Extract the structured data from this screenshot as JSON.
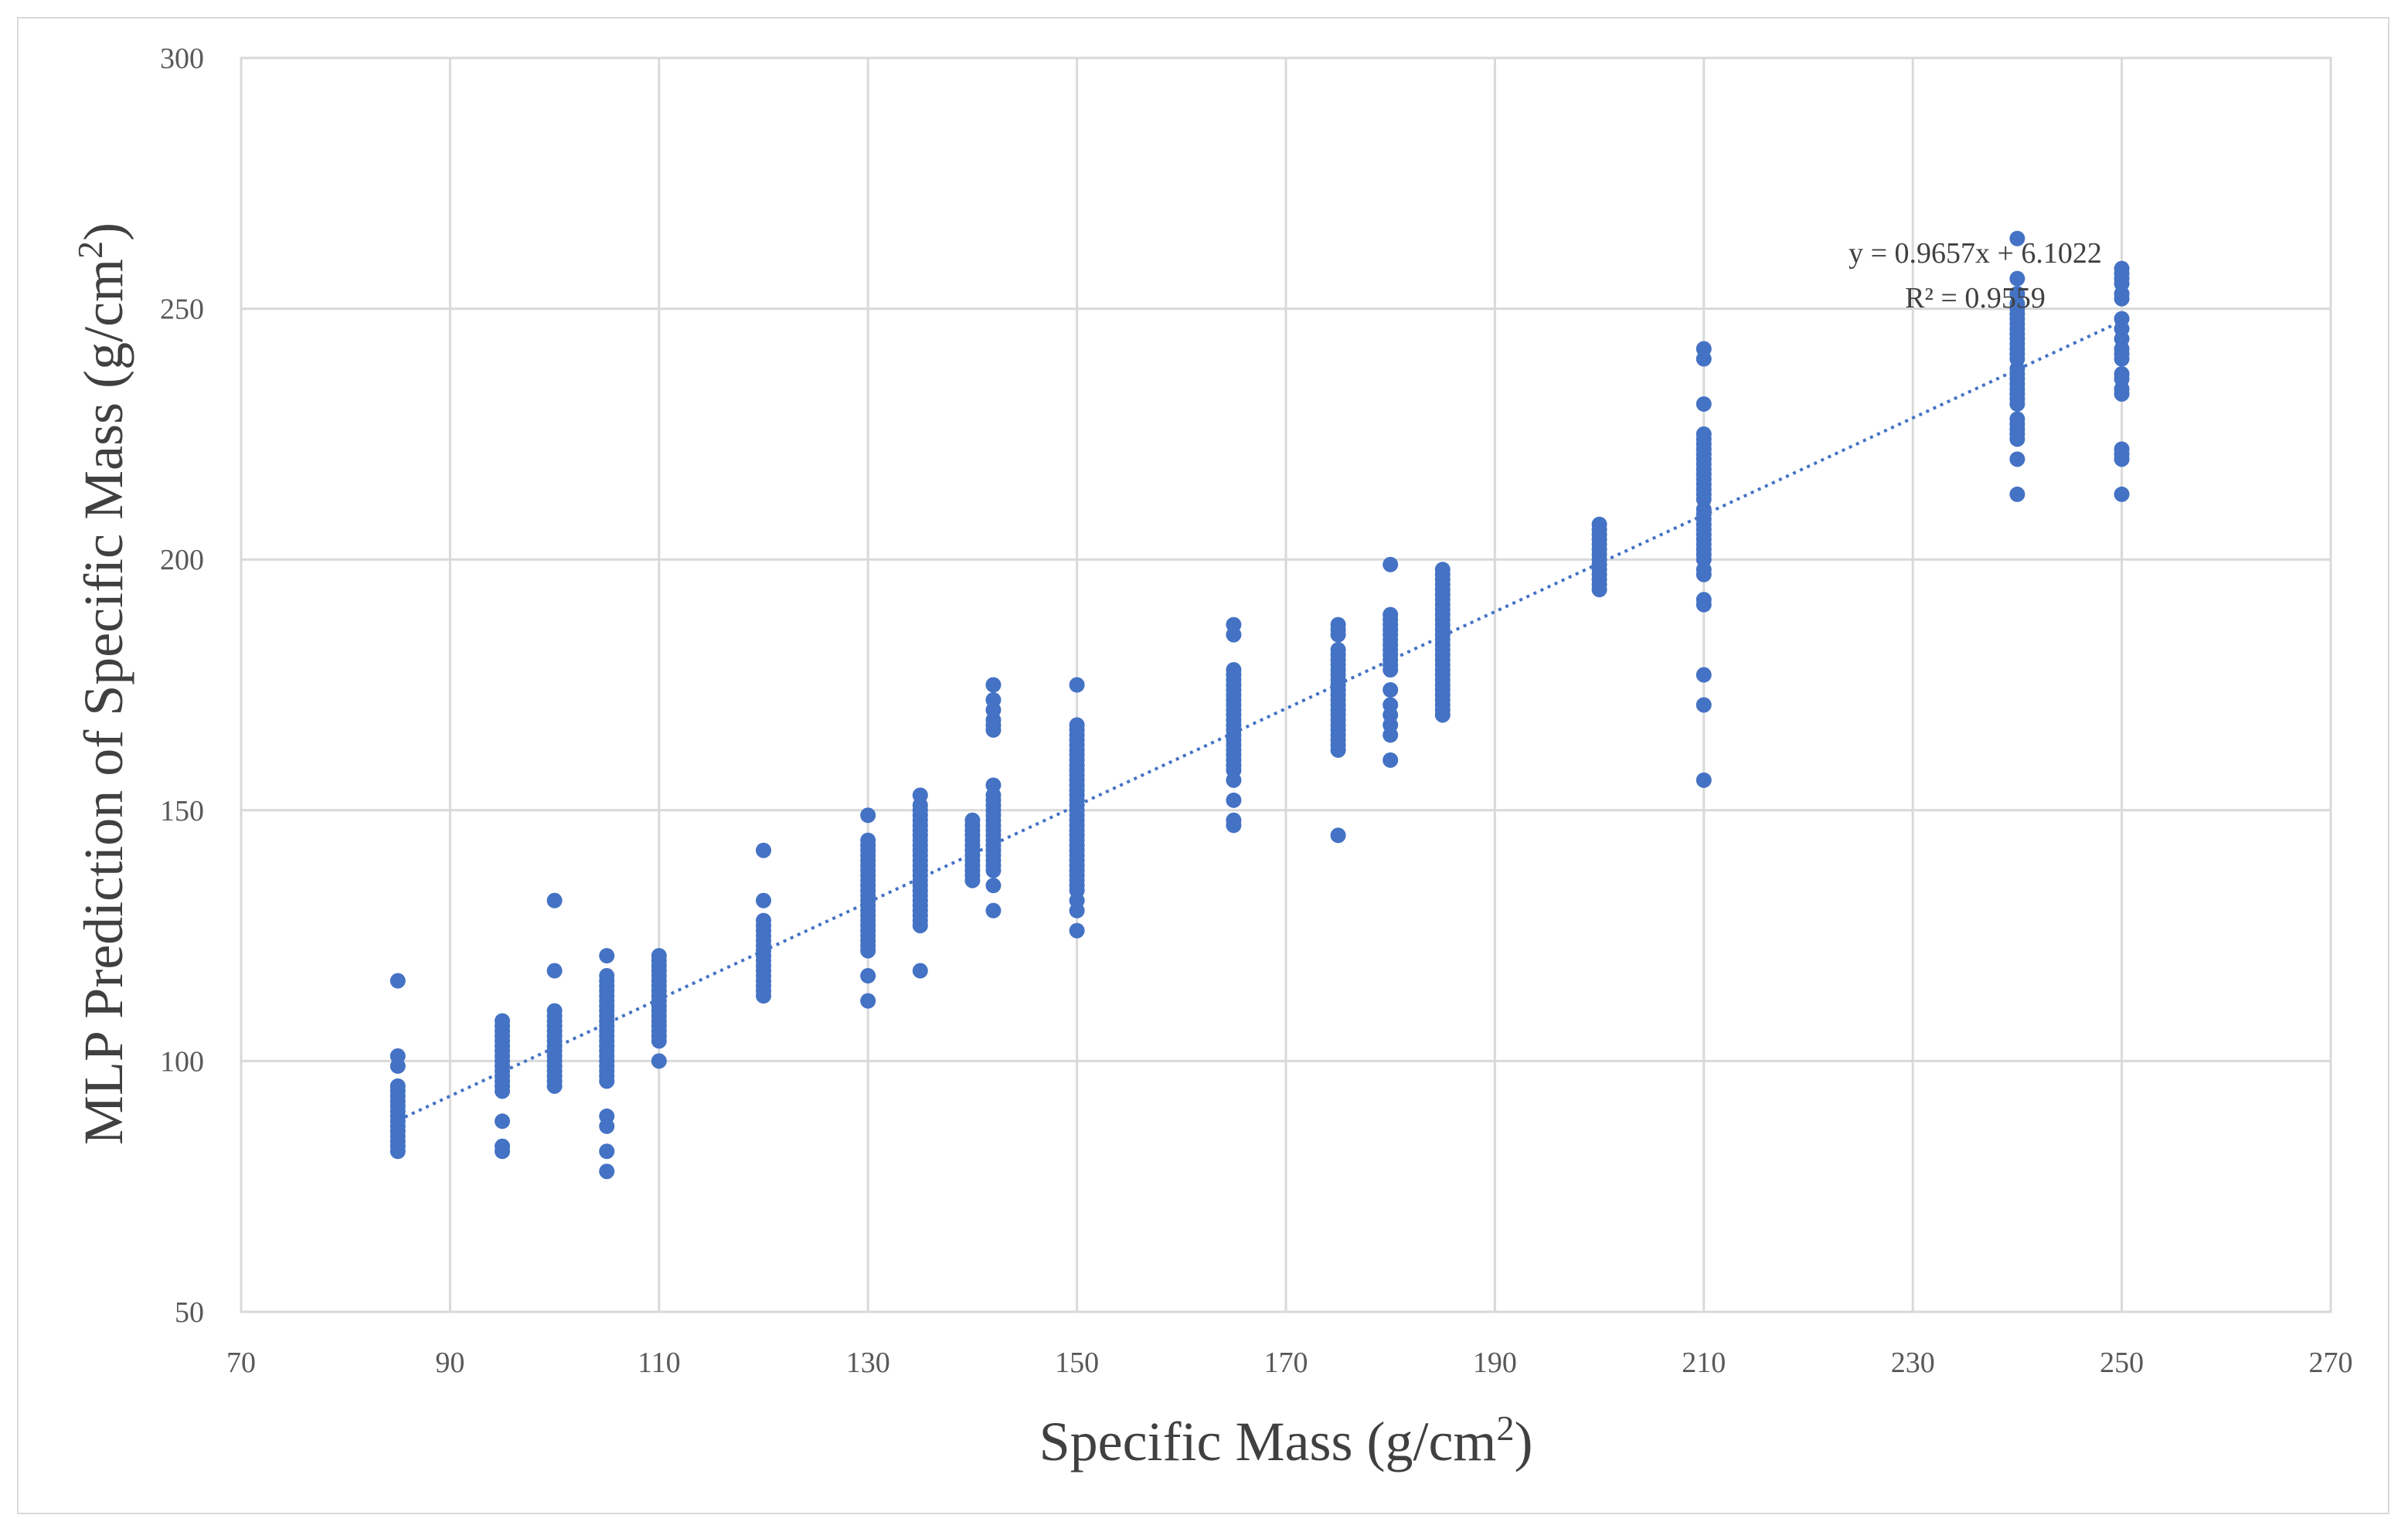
{
  "chart_data": {
    "type": "scatter",
    "title": "",
    "xlabel": "Specific Mass  (g/cm",
    "xlabel_sup": "2",
    "xlabel_end": ")",
    "ylabel": "MLP Prediction of Specific Mass  (g/cm",
    "ylabel_sup": "2",
    "ylabel_end": ")",
    "xlim": [
      70,
      270
    ],
    "ylim": [
      50,
      300
    ],
    "xticks": [
      70,
      90,
      110,
      130,
      150,
      170,
      190,
      210,
      230,
      250,
      270
    ],
    "yticks": [
      50,
      100,
      150,
      200,
      250,
      300
    ],
    "grid": true,
    "marker_color": "#4472c4",
    "trendline": {
      "slope": 0.9657,
      "intercept": 6.1022,
      "x_range": [
        85,
        250
      ],
      "equation": "y = 0.9657x + 6.1022",
      "r2": "R² = 0.9559"
    },
    "series": [
      {
        "x": 85,
        "y": [
          82,
          83,
          84,
          85,
          86,
          87,
          88,
          89,
          90,
          91,
          92,
          93,
          94,
          95,
          99,
          101,
          116
        ]
      },
      {
        "x": 95,
        "y": [
          82,
          83,
          88,
          94,
          95,
          96,
          97,
          98,
          99,
          100,
          101,
          102,
          103,
          104,
          105,
          106,
          107,
          108
        ]
      },
      {
        "x": 100,
        "y": [
          95,
          96,
          97,
          98,
          99,
          100,
          101,
          102,
          103,
          104,
          105,
          106,
          107,
          108,
          109,
          110,
          118,
          132
        ]
      },
      {
        "x": 105,
        "y": [
          78,
          82,
          87,
          89,
          96,
          97,
          98,
          99,
          100,
          101,
          102,
          103,
          104,
          105,
          106,
          107,
          108,
          109,
          110,
          111,
          112,
          113,
          114,
          115,
          116,
          117,
          121
        ]
      },
      {
        "x": 110,
        "y": [
          100,
          104,
          105,
          106,
          107,
          108,
          109,
          110,
          111,
          112,
          113,
          114,
          115,
          116,
          117,
          118,
          119,
          120,
          121
        ]
      },
      {
        "x": 120,
        "y": [
          113,
          114,
          115,
          116,
          117,
          118,
          119,
          120,
          121,
          122,
          123,
          124,
          125,
          126,
          127,
          128,
          132,
          142
        ]
      },
      {
        "x": 130,
        "y": [
          112,
          117,
          122,
          123,
          124,
          125,
          126,
          127,
          128,
          129,
          130,
          131,
          132,
          133,
          134,
          135,
          136,
          137,
          138,
          139,
          140,
          141,
          142,
          143,
          144,
          149
        ]
      },
      {
        "x": 135,
        "y": [
          118,
          127,
          128,
          129,
          130,
          131,
          132,
          133,
          134,
          135,
          136,
          137,
          138,
          139,
          140,
          141,
          142,
          143,
          144,
          145,
          146,
          147,
          148,
          149,
          150,
          151,
          153
        ]
      },
      {
        "x": 140,
        "y": [
          136,
          137,
          138,
          139,
          140,
          141,
          142,
          143,
          144,
          145,
          146,
          147,
          148
        ]
      },
      {
        "x": 142,
        "y": [
          130,
          135,
          138,
          139,
          140,
          141,
          142,
          143,
          144,
          145,
          146,
          147,
          148,
          149,
          150,
          151,
          152,
          153,
          155,
          166,
          167,
          168,
          170,
          172,
          175
        ]
      },
      {
        "x": 150,
        "y": [
          126,
          130,
          132,
          134,
          135,
          136,
          137,
          138,
          139,
          140,
          141,
          142,
          143,
          144,
          145,
          146,
          147,
          148,
          149,
          150,
          151,
          152,
          153,
          154,
          155,
          156,
          157,
          158,
          159,
          160,
          161,
          162,
          163,
          164,
          165,
          166,
          167,
          175
        ]
      },
      {
        "x": 165,
        "y": [
          147,
          148,
          152,
          156,
          158,
          159,
          160,
          161,
          162,
          163,
          164,
          165,
          166,
          167,
          168,
          169,
          170,
          171,
          172,
          173,
          174,
          175,
          176,
          177,
          178,
          185,
          187
        ]
      },
      {
        "x": 175,
        "y": [
          145,
          162,
          163,
          164,
          165,
          166,
          167,
          168,
          169,
          170,
          171,
          172,
          173,
          174,
          175,
          176,
          177,
          178,
          179,
          180,
          181,
          182,
          185,
          186,
          187
        ]
      },
      {
        "x": 180,
        "y": [
          160,
          165,
          167,
          169,
          171,
          174,
          178,
          179,
          180,
          181,
          182,
          183,
          184,
          185,
          186,
          187,
          188,
          189,
          199
        ]
      },
      {
        "x": 185,
        "y": [
          169,
          170,
          171,
          172,
          173,
          174,
          175,
          176,
          177,
          178,
          179,
          180,
          181,
          182,
          183,
          184,
          185,
          186,
          187,
          188,
          189,
          190,
          191,
          192,
          193,
          194,
          195,
          196,
          197,
          198
        ]
      },
      {
        "x": 200,
        "y": [
          194,
          195,
          196,
          197,
          198,
          199,
          200,
          201,
          202,
          203,
          204,
          205,
          206,
          207
        ]
      },
      {
        "x": 210,
        "y": [
          156,
          171,
          177,
          191,
          192,
          197,
          198,
          200,
          201,
          202,
          203,
          204,
          205,
          206,
          207,
          208,
          209,
          210,
          212,
          213,
          214,
          215,
          216,
          217,
          218,
          219,
          220,
          221,
          222,
          223,
          224,
          225,
          231,
          240,
          242
        ]
      },
      {
        "x": 240,
        "y": [
          213,
          220,
          224,
          225,
          226,
          227,
          228,
          231,
          232,
          233,
          234,
          235,
          236,
          237,
          238,
          240,
          241,
          242,
          243,
          244,
          245,
          246,
          247,
          248,
          249,
          250,
          251,
          253,
          256,
          264
        ]
      },
      {
        "x": 250,
        "y": [
          213,
          220,
          221,
          222,
          233,
          234,
          236,
          237,
          240,
          241,
          242,
          244,
          246,
          248,
          252,
          253,
          255,
          256,
          257,
          258
        ]
      }
    ]
  }
}
